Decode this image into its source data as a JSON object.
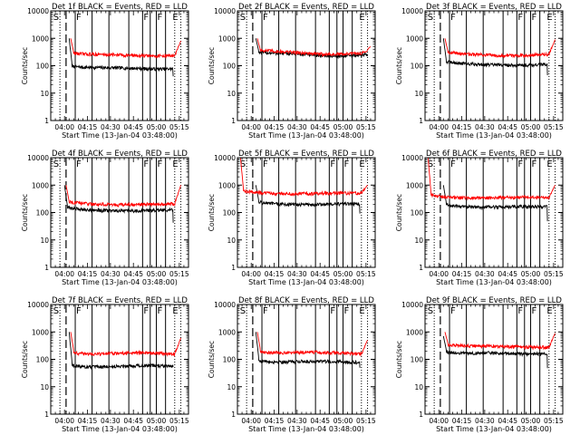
{
  "figure": {
    "time_labels": [
      "04:00",
      "04:15",
      "04:30",
      "04:45",
      "05:00",
      "05:15"
    ],
    "xlabel": "Start Time (13-Jan-04 03:48:00)",
    "ylabel": "Counts/sec",
    "y_tick_labels": [
      "1",
      "10",
      "100",
      "1000",
      "10000"
    ],
    "y_tick_values": [
      1,
      10,
      100,
      1000,
      10000
    ],
    "colors": {
      "events": "#000000",
      "lld": "#ff0000",
      "axes": "#000000"
    }
  },
  "chart_data": [
    {
      "type": "line",
      "title": "Det 1f BLACK = Events, RED = LLD",
      "yscale": "log",
      "ylim": [
        1,
        10000
      ],
      "xlim_minutes": [
        3,
        93
      ],
      "flags": [
        {
          "t": 4,
          "label": "S"
        },
        {
          "t": 19,
          "label": "F"
        },
        {
          "t": 63,
          "label": "F"
        },
        {
          "t": 72,
          "label": "F"
        },
        {
          "t": 82,
          "label": "E"
        }
      ],
      "dashed_lines": [
        13
      ],
      "solid_lines": [
        19,
        30,
        41,
        54,
        63,
        68,
        72,
        78
      ],
      "dotted_lines": [
        9,
        84,
        88
      ],
      "series": [
        {
          "name": "Events",
          "start": 15,
          "end": 83,
          "initial": 1000,
          "level": 80,
          "wave": 0.05,
          "drop_at": 83,
          "drop_to": 38,
          "drop_end": 88,
          "end_level": 50
        },
        {
          "name": "LLD",
          "start": 16,
          "end": 88,
          "initial": 1000,
          "level": 240,
          "wave": 0.05,
          "tail": 800
        }
      ]
    },
    {
      "type": "line",
      "title": "Det 2f BLACK = Events, RED = LLD",
      "yscale": "log",
      "ylim": [
        1,
        10000
      ],
      "xlim_minutes": [
        3,
        93
      ],
      "flags": [
        {
          "t": 4,
          "label": "S"
        },
        {
          "t": 19,
          "label": "F"
        },
        {
          "t": 82,
          "label": "E"
        }
      ],
      "dashed_lines": [
        13
      ],
      "solid_lines": [
        19,
        30,
        41,
        54,
        63,
        68,
        72,
        78
      ],
      "dotted_lines": [
        9,
        84,
        88
      ],
      "series": [
        {
          "name": "Events",
          "start": 15,
          "end": 88,
          "initial": 1000,
          "level": 250,
          "wave": 0.1
        },
        {
          "name": "LLD",
          "start": 16,
          "end": 90,
          "initial": 1000,
          "level": 290,
          "wave": 0.1,
          "tail": 500
        }
      ]
    },
    {
      "type": "line",
      "title": "Det 3f BLACK = Events, RED = LLD",
      "yscale": "log",
      "ylim": [
        1,
        10000
      ],
      "xlim_minutes": [
        3,
        93
      ],
      "flags": [
        {
          "t": 4,
          "label": "S"
        },
        {
          "t": 19,
          "label": "F"
        },
        {
          "t": 63,
          "label": "F"
        },
        {
          "t": 72,
          "label": "F"
        },
        {
          "t": 82,
          "label": "E"
        }
      ],
      "dashed_lines": [
        13
      ],
      "solid_lines": [
        19,
        30,
        41,
        54,
        63,
        68,
        72,
        78
      ],
      "dotted_lines": [
        9,
        84,
        88
      ],
      "series": [
        {
          "name": "Events",
          "start": 15,
          "end": 83,
          "initial": 1000,
          "level": 110,
          "wave": 0.05,
          "drop_at": 83,
          "drop_to": 45,
          "drop_end": 88,
          "end_level": 65
        },
        {
          "name": "LLD",
          "start": 16,
          "end": 88,
          "initial": 1000,
          "level": 250,
          "wave": 0.05,
          "tail": 900
        }
      ]
    },
    {
      "type": "line",
      "title": "Det 4f BLACK = Events, RED = LLD",
      "yscale": "log",
      "ylim": [
        1,
        10000
      ],
      "xlim_minutes": [
        3,
        93
      ],
      "flags": [
        {
          "t": 4,
          "label": "S"
        },
        {
          "t": 19,
          "label": "F"
        },
        {
          "t": 63,
          "label": "F"
        },
        {
          "t": 72,
          "label": "F"
        },
        {
          "t": 82,
          "label": "E"
        }
      ],
      "dashed_lines": [
        13
      ],
      "solid_lines": [
        19,
        30,
        41,
        54,
        63,
        68,
        72,
        78
      ],
      "dotted_lines": [
        9,
        84,
        88
      ],
      "series": [
        {
          "name": "Events",
          "start": 12,
          "end": 83,
          "initial": 1000,
          "level": 120,
          "wave": 0.05,
          "drop_at": 83,
          "drop_to": 50,
          "drop_end": 88,
          "end_level": 65
        },
        {
          "name": "LLD",
          "start": 13,
          "end": 88,
          "initial": 1000,
          "level": 200,
          "wave": 0.05,
          "tail": 1000
        }
      ]
    },
    {
      "type": "line",
      "title": "Det 5f BLACK = Events, RED = LLD",
      "yscale": "log",
      "ylim": [
        1,
        10000
      ],
      "xlim_minutes": [
        3,
        93
      ],
      "flags": [
        {
          "t": 4,
          "label": "S"
        },
        {
          "t": 19,
          "label": "F"
        },
        {
          "t": 63,
          "label": "F"
        },
        {
          "t": 72,
          "label": "F"
        },
        {
          "t": 82,
          "label": "E"
        }
      ],
      "dashed_lines": [
        13
      ],
      "solid_lines": [
        19,
        30,
        41,
        54,
        63,
        68,
        72,
        78
      ],
      "dotted_lines": [
        9,
        84,
        88
      ],
      "series": [
        {
          "name": "Events",
          "start": 15,
          "end": 83,
          "initial": 1000,
          "level": 200,
          "wave": 0.03,
          "drop_at": 83,
          "drop_to": 100,
          "drop_end": 88,
          "end_level": 120
        },
        {
          "name": "LLD",
          "start": 5,
          "end": 88,
          "initial": 10000,
          "level": 500,
          "wave": 0.03,
          "tail": 1000
        }
      ]
    },
    {
      "type": "line",
      "title": "Det 6f BLACK = Events, RED = LLD",
      "yscale": "log",
      "ylim": [
        1,
        10000
      ],
      "xlim_minutes": [
        3,
        93
      ],
      "flags": [
        {
          "t": 4,
          "label": "S"
        },
        {
          "t": 19,
          "label": "F"
        },
        {
          "t": 63,
          "label": "F"
        },
        {
          "t": 72,
          "label": "F"
        },
        {
          "t": 82,
          "label": "E"
        }
      ],
      "dashed_lines": [
        13
      ],
      "solid_lines": [
        19,
        30,
        41,
        54,
        63,
        68,
        72,
        78
      ],
      "dotted_lines": [
        9,
        84,
        88
      ],
      "series": [
        {
          "name": "Events",
          "start": 15,
          "end": 83,
          "initial": 1000,
          "level": 160,
          "wave": 0.03,
          "drop_at": 83,
          "drop_to": 55,
          "drop_end": 88,
          "end_level": 80
        },
        {
          "name": "LLD",
          "start": 5,
          "end": 88,
          "initial": 10000,
          "level": 350,
          "wave": 0.03,
          "tail": 1000
        }
      ]
    },
    {
      "type": "line",
      "title": "Det 7f BLACK = Events, RED = LLD",
      "yscale": "log",
      "ylim": [
        1,
        10000
      ],
      "xlim_minutes": [
        3,
        93
      ],
      "flags": [
        {
          "t": 4,
          "label": "S"
        },
        {
          "t": 19,
          "label": "F"
        },
        {
          "t": 63,
          "label": "F"
        },
        {
          "t": 72,
          "label": "F"
        },
        {
          "t": 82,
          "label": "E"
        }
      ],
      "dashed_lines": [
        13
      ],
      "solid_lines": [
        19,
        30,
        41,
        54,
        63,
        68,
        72,
        78
      ],
      "dotted_lines": [
        9,
        84,
        88
      ],
      "series": [
        {
          "name": "Events",
          "start": 15,
          "end": 83,
          "initial": 1000,
          "level": 55,
          "wave": 0.08
        },
        {
          "name": "LLD",
          "start": 16,
          "end": 88,
          "initial": 1000,
          "level": 160,
          "wave": 0.08,
          "tail": 600
        }
      ]
    },
    {
      "type": "line",
      "title": "Det 8f BLACK = Events, RED = LLD",
      "yscale": "log",
      "ylim": [
        1,
        10000
      ],
      "xlim_minutes": [
        3,
        93
      ],
      "flags": [
        {
          "t": 4,
          "label": "S"
        },
        {
          "t": 19,
          "label": "F"
        },
        {
          "t": 63,
          "label": "F"
        },
        {
          "t": 72,
          "label": "F"
        },
        {
          "t": 82,
          "label": "E"
        }
      ],
      "dashed_lines": [
        13
      ],
      "solid_lines": [
        19,
        30,
        41,
        54,
        63,
        68,
        72,
        78
      ],
      "dotted_lines": [
        9,
        84,
        88
      ],
      "series": [
        {
          "name": "Events",
          "start": 15,
          "end": 83,
          "initial": 1000,
          "level": 80,
          "wave": 0.06,
          "drop_at": 83,
          "drop_to": 45,
          "drop_end": 88,
          "end_level": 60
        },
        {
          "name": "LLD",
          "start": 16,
          "end": 88,
          "initial": 1000,
          "level": 170,
          "wave": 0.06,
          "tail": 500
        }
      ]
    },
    {
      "type": "line",
      "title": "Det 9f BLACK = Events, RED = LLD",
      "yscale": "log",
      "ylim": [
        1,
        10000
      ],
      "xlim_minutes": [
        3,
        93
      ],
      "flags": [
        {
          "t": 4,
          "label": "S"
        },
        {
          "t": 19,
          "label": "F"
        },
        {
          "t": 63,
          "label": "F"
        },
        {
          "t": 72,
          "label": "F"
        },
        {
          "t": 82,
          "label": "E"
        }
      ],
      "dashed_lines": [
        13
      ],
      "solid_lines": [
        19,
        30,
        41,
        54,
        63,
        68,
        72,
        78
      ],
      "dotted_lines": [
        9,
        84,
        88
      ],
      "series": [
        {
          "name": "Events",
          "start": 15,
          "end": 83,
          "initial": 700,
          "level": 160,
          "wave": 0.05,
          "drop_at": 83,
          "drop_to": 45,
          "drop_end": 88,
          "end_level": 65
        },
        {
          "name": "LLD",
          "start": 16,
          "end": 88,
          "initial": 1000,
          "level": 290,
          "wave": 0.05,
          "tail": 900
        }
      ]
    }
  ]
}
